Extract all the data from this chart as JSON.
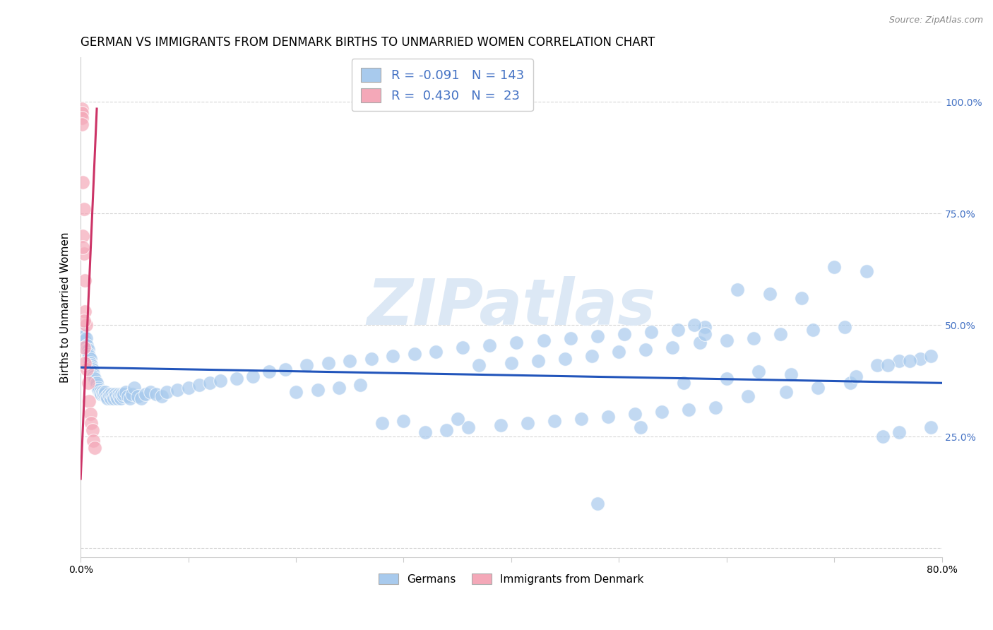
{
  "title": "GERMAN VS IMMIGRANTS FROM DENMARK BIRTHS TO UNMARRIED WOMEN CORRELATION CHART",
  "source": "Source: ZipAtlas.com",
  "ylabel": "Births to Unmarried Women",
  "xlim": [
    0.0,
    0.8
  ],
  "ylim": [
    -0.02,
    1.1
  ],
  "yticks": [
    0.0,
    0.25,
    0.5,
    0.75,
    1.0
  ],
  "ytick_labels": [
    "",
    "25.0%",
    "50.0%",
    "75.0%",
    "100.0%"
  ],
  "xtick_left_label": "0.0%",
  "xtick_right_label": "80.0%",
  "blue_color": "#a8caed",
  "pink_color": "#f4a8b8",
  "blue_line_color": "#2255bb",
  "pink_line_color": "#cc3366",
  "watermark": "ZIPatlas",
  "watermark_color": "#dce8f5",
  "title_fontsize": 12,
  "axis_label_fontsize": 11,
  "tick_fontsize": 10,
  "legend_fontsize": 13,
  "blue_trendline_x": [
    0.0,
    0.8
  ],
  "blue_trendline_y": [
    0.405,
    0.37
  ],
  "pink_trendline_x": [
    0.0,
    0.015
  ],
  "pink_trendline_y": [
    0.155,
    0.985
  ],
  "blue_scatter_x": [
    0.002,
    0.003,
    0.004,
    0.005,
    0.006,
    0.006,
    0.007,
    0.007,
    0.008,
    0.008,
    0.009,
    0.009,
    0.01,
    0.01,
    0.011,
    0.011,
    0.012,
    0.012,
    0.013,
    0.013,
    0.014,
    0.015,
    0.015,
    0.016,
    0.016,
    0.017,
    0.018,
    0.019,
    0.02,
    0.021,
    0.022,
    0.023,
    0.024,
    0.025,
    0.026,
    0.027,
    0.028,
    0.029,
    0.03,
    0.031,
    0.032,
    0.033,
    0.034,
    0.035,
    0.036,
    0.037,
    0.038,
    0.039,
    0.04,
    0.042,
    0.044,
    0.046,
    0.048,
    0.05,
    0.053,
    0.056,
    0.06,
    0.065,
    0.07,
    0.075,
    0.08,
    0.09,
    0.1,
    0.11,
    0.12,
    0.13,
    0.145,
    0.16,
    0.175,
    0.19,
    0.21,
    0.23,
    0.25,
    0.27,
    0.29,
    0.31,
    0.33,
    0.355,
    0.38,
    0.405,
    0.43,
    0.455,
    0.48,
    0.505,
    0.53,
    0.555,
    0.58,
    0.61,
    0.64,
    0.67,
    0.7,
    0.73,
    0.76,
    0.78,
    0.37,
    0.4,
    0.425,
    0.45,
    0.475,
    0.5,
    0.525,
    0.55,
    0.575,
    0.6,
    0.625,
    0.65,
    0.68,
    0.71,
    0.74,
    0.77,
    0.32,
    0.34,
    0.36,
    0.39,
    0.415,
    0.44,
    0.465,
    0.49,
    0.515,
    0.54,
    0.565,
    0.59,
    0.62,
    0.655,
    0.685,
    0.715,
    0.745,
    0.76,
    0.79,
    0.28,
    0.3,
    0.35,
    0.48,
    0.57,
    0.63,
    0.66,
    0.72,
    0.75,
    0.79,
    0.2,
    0.22,
    0.24,
    0.26,
    0.52,
    0.58,
    0.56,
    0.6
  ],
  "blue_scatter_y": [
    0.485,
    0.475,
    0.465,
    0.47,
    0.455,
    0.445,
    0.445,
    0.435,
    0.43,
    0.42,
    0.425,
    0.415,
    0.41,
    0.405,
    0.4,
    0.395,
    0.39,
    0.385,
    0.375,
    0.38,
    0.37,
    0.365,
    0.37,
    0.36,
    0.355,
    0.355,
    0.35,
    0.345,
    0.35,
    0.345,
    0.345,
    0.35,
    0.34,
    0.335,
    0.345,
    0.34,
    0.335,
    0.345,
    0.34,
    0.335,
    0.345,
    0.34,
    0.335,
    0.345,
    0.34,
    0.335,
    0.345,
    0.34,
    0.345,
    0.35,
    0.34,
    0.335,
    0.345,
    0.36,
    0.34,
    0.335,
    0.345,
    0.35,
    0.345,
    0.34,
    0.35,
    0.355,
    0.36,
    0.365,
    0.37,
    0.375,
    0.38,
    0.385,
    0.395,
    0.4,
    0.41,
    0.415,
    0.42,
    0.425,
    0.43,
    0.435,
    0.44,
    0.45,
    0.455,
    0.46,
    0.465,
    0.47,
    0.475,
    0.48,
    0.485,
    0.49,
    0.495,
    0.58,
    0.57,
    0.56,
    0.63,
    0.62,
    0.42,
    0.425,
    0.41,
    0.415,
    0.42,
    0.425,
    0.43,
    0.44,
    0.445,
    0.45,
    0.46,
    0.465,
    0.47,
    0.48,
    0.49,
    0.495,
    0.41,
    0.42,
    0.26,
    0.265,
    0.27,
    0.275,
    0.28,
    0.285,
    0.29,
    0.295,
    0.3,
    0.305,
    0.31,
    0.315,
    0.34,
    0.35,
    0.36,
    0.37,
    0.25,
    0.26,
    0.27,
    0.28,
    0.285,
    0.29,
    0.1,
    0.5,
    0.395,
    0.39,
    0.385,
    0.41,
    0.43,
    0.35,
    0.355,
    0.36,
    0.365,
    0.27,
    0.48,
    0.37,
    0.38
  ],
  "pink_scatter_x": [
    0.001,
    0.001,
    0.001,
    0.001,
    0.002,
    0.002,
    0.003,
    0.003,
    0.003,
    0.004,
    0.004,
    0.005,
    0.006,
    0.007,
    0.008,
    0.009,
    0.01,
    0.011,
    0.012,
    0.013,
    0.004,
    0.003,
    0.002
  ],
  "pink_scatter_y": [
    0.985,
    0.975,
    0.965,
    0.95,
    0.82,
    0.7,
    0.76,
    0.66,
    0.45,
    0.6,
    0.53,
    0.5,
    0.4,
    0.37,
    0.33,
    0.3,
    0.28,
    0.265,
    0.24,
    0.225,
    0.415,
    0.51,
    0.675
  ]
}
